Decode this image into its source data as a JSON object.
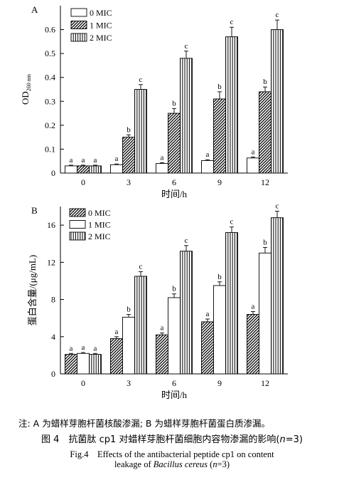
{
  "chart_data": [
    {
      "type": "bar",
      "panel_label": "A",
      "categories": [
        "0",
        "3",
        "6",
        "9",
        "12"
      ],
      "series": [
        {
          "name": "0 MIC",
          "pattern": "white",
          "values": [
            0.03,
            0.035,
            0.04,
            0.052,
            0.063
          ],
          "errors": [
            0.003,
            0.003,
            0.003,
            0.004,
            0.004
          ],
          "labels": [
            "a",
            "a",
            "a",
            "a",
            "a"
          ]
        },
        {
          "name": "1 MIC",
          "pattern": "diagonal",
          "values": [
            0.03,
            0.15,
            0.25,
            0.31,
            0.34
          ],
          "errors": [
            0.003,
            0.01,
            0.02,
            0.03,
            0.02
          ],
          "labels": [
            "a",
            "b",
            "b",
            "b",
            "b"
          ]
        },
        {
          "name": "2 MIC",
          "pattern": "vertical",
          "values": [
            0.03,
            0.35,
            0.48,
            0.57,
            0.6
          ],
          "errors": [
            0.003,
            0.02,
            0.03,
            0.04,
            0.04
          ],
          "labels": [
            "a",
            "c",
            "c",
            "c",
            "c"
          ]
        }
      ],
      "ylabel_main": "OD",
      "ylabel_sub": "260 nm",
      "xlabel": "时间/h",
      "ylim": [
        0,
        0.7
      ],
      "yticks": [
        0,
        0.1,
        0.2,
        0.3,
        0.4,
        0.5,
        0.6
      ],
      "ytick_labels": [
        "0",
        "0.1",
        "0.2",
        "0.3",
        "0.4",
        "0.5",
        "0.6"
      ],
      "legend_position": "top-left",
      "grid": false
    },
    {
      "type": "bar",
      "panel_label": "B",
      "categories": [
        "0",
        "3",
        "6",
        "9",
        "12"
      ],
      "series": [
        {
          "name": "0 MIC",
          "pattern": "diagonal",
          "values": [
            2.1,
            3.8,
            4.2,
            5.6,
            6.4
          ],
          "errors": [
            0.1,
            0.2,
            0.2,
            0.3,
            0.3
          ],
          "labels": [
            "a",
            "a",
            "a",
            "a",
            "a"
          ]
        },
        {
          "name": "1 MIC",
          "pattern": "white",
          "values": [
            2.2,
            6.1,
            8.2,
            9.5,
            13.0
          ],
          "errors": [
            0.1,
            0.3,
            0.4,
            0.4,
            0.6
          ],
          "labels": [
            "a",
            "b",
            "b",
            "b",
            "b"
          ]
        },
        {
          "name": "2 MIC",
          "pattern": "vertical",
          "values": [
            2.1,
            10.5,
            13.2,
            15.2,
            16.8
          ],
          "errors": [
            0.1,
            0.5,
            0.6,
            0.6,
            0.7
          ],
          "labels": [
            "a",
            "c",
            "c",
            "c",
            "c"
          ]
        }
      ],
      "ylabel": "蛋白含量/(μg/mL)",
      "xlabel": "时间/h",
      "ylim": [
        0,
        18
      ],
      "yticks": [
        0,
        4,
        8,
        12,
        16
      ],
      "ytick_labels": [
        "0",
        "4",
        "8",
        "12",
        "16"
      ],
      "legend_position": "top-left",
      "grid": false
    }
  ],
  "caption": {
    "note": "注: A 为蜡样芽胞杆菌核酸渗漏; B 为蜡样芽胞杆菌蛋白质渗漏。",
    "cn_prefix": "图 4　抗菌肽 cp1 对蜡样芽胞杆菌细胞内容物渗漏的影响(",
    "cn_n": "n",
    "cn_suffix": "=3)",
    "en_line1": "Fig.4　Effects of the antibacterial peptide cp1 on content",
    "en_line2_prefix": "leakage of ",
    "en_species": "Bacillus cereus",
    "en_line2_mid": " (",
    "en_n": "n",
    "en_line2_suffix": "=3)"
  }
}
